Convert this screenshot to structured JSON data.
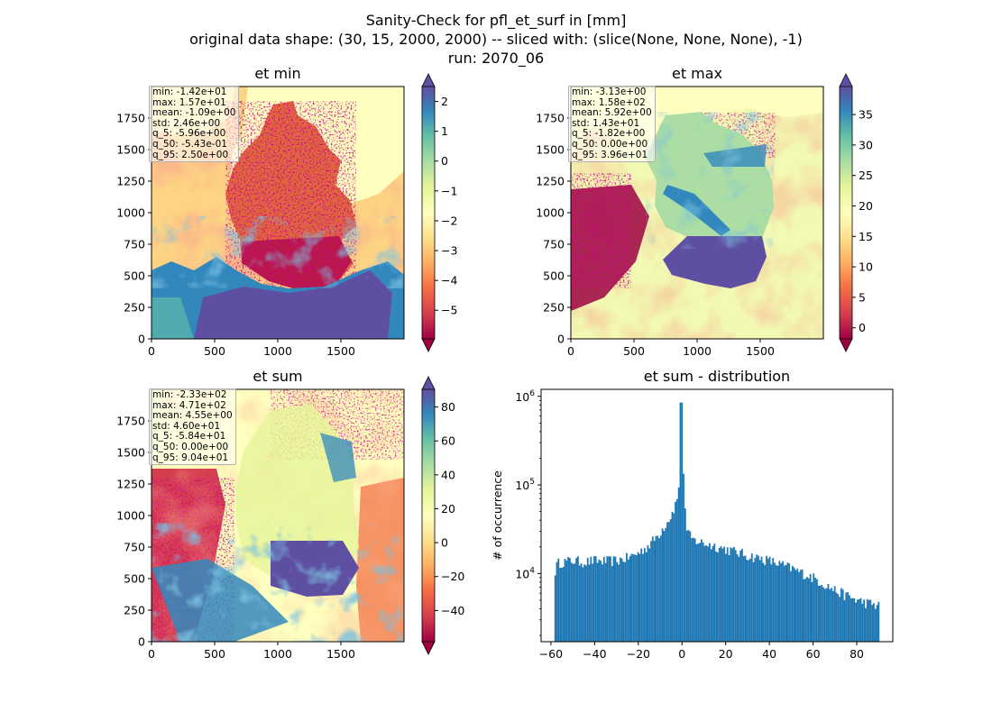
{
  "figure": {
    "title_lines": [
      "Sanity-Check for pfl_et_surf in [mm]",
      "original data shape: (30, 15, 2000, 2000) -- sliced with: (slice(None, None, None), -1)",
      "run: 2070_06"
    ],
    "colormap": "Spectral",
    "colormap_stops": [
      "#9e0142",
      "#d53e4f",
      "#f46d43",
      "#fdae61",
      "#fee08b",
      "#ffffbf",
      "#e6f598",
      "#abdda4",
      "#66c2a5",
      "#3288bd",
      "#5e4fa2"
    ],
    "hist_color": "#1f77b4"
  },
  "chart_data": [
    {
      "type": "heatmap",
      "title": "et min",
      "x_ticks": [
        "0",
        "500",
        "1000",
        "1500"
      ],
      "y_ticks": [
        "0",
        "250",
        "500",
        "750",
        "1000",
        "1250",
        "1500",
        "1750"
      ],
      "xlim": [
        0,
        2000
      ],
      "ylim": [
        0,
        2000
      ],
      "colorbar": {
        "range": [
          -5.96,
          2.5
        ],
        "ticks": [
          "2",
          "1",
          "0",
          "−1",
          "−2",
          "−3",
          "−4",
          "−5"
        ],
        "tick_values": [
          2,
          1,
          0,
          -1,
          -2,
          -3,
          -4,
          -5
        ],
        "extend": "both"
      },
      "stats": [
        "min: -1.42e+01",
        "max: 1.57e+01",
        "mean: -1.09e+00",
        "std: 2.46e+00",
        "q_5: -5.96e+00",
        "q_50: -5.43e-01",
        "q_95: 2.50e+00"
      ]
    },
    {
      "type": "heatmap",
      "title": "et max",
      "x_ticks": [
        "0",
        "500",
        "1000",
        "1500"
      ],
      "y_ticks": [
        "0",
        "250",
        "500",
        "750",
        "1000",
        "1250",
        "1500",
        "1750"
      ],
      "xlim": [
        0,
        2000
      ],
      "ylim": [
        0,
        2000
      ],
      "colorbar": {
        "range": [
          -1.82,
          39.6
        ],
        "ticks": [
          "35",
          "30",
          "25",
          "20",
          "15",
          "10",
          "5",
          "0"
        ],
        "tick_values": [
          35,
          30,
          25,
          20,
          15,
          10,
          5,
          0
        ],
        "extend": "both"
      },
      "stats": [
        "min: -3.13e+00",
        "max: 1.58e+02",
        "mean: 5.92e+00",
        "std: 1.43e+01",
        "q_5: -1.82e+00",
        "q_50: 0.00e+00",
        "q_95: 3.96e+01"
      ]
    },
    {
      "type": "heatmap",
      "title": "et sum",
      "x_ticks": [
        "0",
        "500",
        "1000",
        "1500"
      ],
      "y_ticks": [
        "0",
        "250",
        "500",
        "750",
        "1000",
        "1250",
        "1500",
        "1750"
      ],
      "xlim": [
        0,
        2000
      ],
      "ylim": [
        0,
        2000
      ],
      "colorbar": {
        "range": [
          -58.4,
          90.4
        ],
        "ticks": [
          "80",
          "60",
          "40",
          "20",
          "0",
          "−20",
          "−40"
        ],
        "tick_values": [
          80,
          60,
          40,
          20,
          0,
          -20,
          -40
        ],
        "extend": "both"
      },
      "stats": [
        "min: -2.33e+02",
        "max: 4.71e+02",
        "mean: 4.55e+00",
        "std: 4.60e+01",
        "q_5: -5.84e+01",
        "q_50: 0.00e+00",
        "q_95: 9.04e+01"
      ]
    },
    {
      "type": "bar",
      "title": "et sum - distribution",
      "ylabel": "# of occurrence",
      "xlabel": "",
      "log_y": true,
      "xlim": [
        -64.5,
        96.5
      ],
      "ylim": [
        1700,
        1200000
      ],
      "x_ticks": [
        "−60",
        "−40",
        "−20",
        "0",
        "20",
        "40",
        "60",
        "80"
      ],
      "x_tick_values": [
        -60,
        -40,
        -20,
        0,
        20,
        40,
        60,
        80
      ],
      "y_ticks": [
        {
          "base": "10",
          "exp": "4",
          "value": 10000
        },
        {
          "base": "10",
          "exp": "5",
          "value": 100000
        },
        {
          "base": "10",
          "exp": "6",
          "value": 1000000
        }
      ],
      "bin_range": [
        -58.4,
        90.4
      ],
      "bins": 200,
      "profile_points": [
        [
          -58.4,
          10000
        ],
        [
          -57.0,
          13000
        ],
        [
          -55,
          13500
        ],
        [
          -50,
          14000
        ],
        [
          -45,
          13500
        ],
        [
          -40,
          14000
        ],
        [
          -35,
          13800
        ],
        [
          -30,
          14000
        ],
        [
          -25,
          15000
        ],
        [
          -20,
          17000
        ],
        [
          -15,
          21000
        ],
        [
          -10,
          29000
        ],
        [
          -5,
          45000
        ],
        [
          -2,
          70000
        ],
        [
          -1,
          130000
        ],
        [
          0,
          850000
        ],
        [
          0.8,
          130000
        ],
        [
          2,
          30000
        ],
        [
          5,
          24000
        ],
        [
          10,
          22000
        ],
        [
          20,
          19000
        ],
        [
          30,
          16000
        ],
        [
          40,
          14000
        ],
        [
          50,
          11500
        ],
        [
          60,
          9000
        ],
        [
          70,
          6500
        ],
        [
          80,
          5000
        ],
        [
          90.4,
          4300
        ]
      ]
    }
  ]
}
